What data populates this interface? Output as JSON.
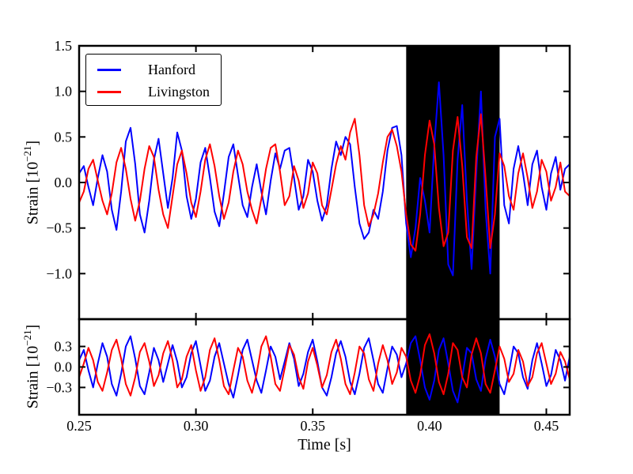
{
  "figure": {
    "background": "#ffffff"
  },
  "chart_data": {
    "type": "line",
    "title": "",
    "xlabel": "Time [s]",
    "grid": false,
    "xlim": [
      0.25,
      0.46
    ],
    "xticks": {
      "values": [
        0.25,
        0.3,
        0.35,
        0.4,
        0.45
      ],
      "labels": [
        "0.25",
        "0.30",
        "0.35",
        "0.40",
        "0.45"
      ]
    },
    "x_start": 0.25,
    "x_step": 0.002,
    "highlight_span": {
      "x0": 0.39,
      "x1": 0.43,
      "color": "#000000"
    },
    "legend": {
      "position": "upper left",
      "items": [
        {
          "label": "Hanford",
          "color": "#0000ff"
        },
        {
          "label": "Livingston",
          "color": "#ff0000"
        }
      ]
    },
    "subplots": [
      {
        "name": "strain-main",
        "ylabel": {
          "prefix": "Strain [10",
          "exponent": "−21",
          "suffix": "]"
        },
        "ylim": [
          -1.5,
          1.5
        ],
        "yticks": {
          "values": [
            1.5,
            1.0,
            0.5,
            0.0,
            -0.5,
            -1.0
          ],
          "labels": [
            "1.5",
            "1.0",
            "0.5",
            "0.0",
            "−0.5",
            "−1.0"
          ]
        },
        "series": [
          {
            "name": "Hanford",
            "color": "#0000ff",
            "values": [
              0.1,
              0.18,
              -0.05,
              -0.25,
              0.05,
              0.3,
              0.12,
              -0.3,
              -0.52,
              -0.1,
              0.45,
              0.6,
              0.2,
              -0.35,
              -0.55,
              -0.2,
              0.25,
              0.48,
              0.1,
              -0.28,
              0.05,
              0.55,
              0.35,
              -0.15,
              -0.4,
              -0.18,
              0.22,
              0.38,
              0.05,
              -0.32,
              -0.48,
              -0.12,
              0.28,
              0.42,
              0.08,
              -0.25,
              -0.38,
              -0.05,
              0.2,
              -0.1,
              -0.35,
              0.02,
              0.32,
              0.15,
              0.35,
              0.38,
              0.05,
              -0.3,
              -0.15,
              0.25,
              0.12,
              -0.2,
              -0.42,
              -0.25,
              0.15,
              0.45,
              0.3,
              0.5,
              0.42,
              -0.05,
              -0.45,
              -0.62,
              -0.55,
              -0.3,
              -0.4,
              -0.1,
              0.35,
              0.6,
              0.62,
              0.3,
              -0.45,
              -0.82,
              -0.5,
              0.05,
              -0.2,
              -0.55,
              0.4,
              1.1,
              0.3,
              -0.9,
              -1.02,
              0.25,
              0.85,
              -0.2,
              -0.95,
              0.1,
              1.0,
              -0.3,
              -1.0,
              0.5,
              0.7,
              -0.25,
              -0.45,
              0.15,
              0.4,
              0.1,
              -0.25,
              0.2,
              0.35,
              -0.05,
              -0.3,
              0.1,
              0.28,
              -0.08,
              0.15,
              0.2
            ]
          },
          {
            "name": "Livingston",
            "color": "#ff0000",
            "values": [
              -0.22,
              -0.1,
              0.15,
              0.25,
              0.02,
              -0.2,
              -0.35,
              -0.12,
              0.22,
              0.38,
              0.15,
              -0.18,
              -0.42,
              -0.2,
              0.15,
              0.4,
              0.28,
              -0.08,
              -0.35,
              -0.5,
              -0.15,
              0.2,
              0.35,
              0.1,
              -0.22,
              -0.38,
              -0.1,
              0.25,
              0.42,
              0.18,
              -0.15,
              -0.4,
              -0.22,
              0.12,
              0.35,
              0.2,
              -0.1,
              -0.3,
              -0.45,
              -0.18,
              0.15,
              0.38,
              0.42,
              0.12,
              -0.25,
              -0.15,
              0.18,
              0.02,
              -0.28,
              -0.12,
              0.22,
              0.1,
              -0.25,
              -0.35,
              -0.08,
              0.2,
              0.4,
              0.25,
              0.55,
              0.7,
              0.3,
              -0.25,
              -0.48,
              -0.35,
              -0.12,
              0.22,
              0.5,
              0.58,
              0.4,
              0.12,
              -0.35,
              -0.68,
              -0.75,
              -0.35,
              0.3,
              0.68,
              0.42,
              -0.28,
              -0.7,
              -0.55,
              0.35,
              0.72,
              0.18,
              -0.6,
              -0.72,
              0.28,
              0.75,
              0.05,
              -0.72,
              -0.35,
              0.32,
              0.18,
              -0.15,
              -0.3,
              0.1,
              0.32,
              0.05,
              -0.28,
              -0.1,
              0.25,
              0.12,
              -0.2,
              -0.05,
              0.22,
              -0.1,
              -0.15
            ]
          }
        ]
      },
      {
        "name": "strain-residual",
        "ylabel": {
          "prefix": "Strain [10",
          "exponent": "−21",
          "suffix": "]"
        },
        "ylim": [
          -0.7,
          0.7
        ],
        "yticks": {
          "values": [
            0.3,
            0.0,
            -0.3
          ],
          "labels": [
            "0.3",
            "0.0",
            "−0.3"
          ]
        },
        "series": [
          {
            "name": "Hanford",
            "color": "#0000ff",
            "values": [
              0.1,
              0.25,
              -0.05,
              -0.3,
              0.05,
              0.35,
              0.15,
              -0.25,
              -0.42,
              -0.1,
              0.3,
              0.45,
              0.12,
              -0.28,
              -0.4,
              -0.08,
              0.28,
              0.1,
              -0.22,
              0.05,
              0.32,
              0.08,
              -0.3,
              -0.15,
              0.2,
              0.38,
              0.02,
              -0.35,
              -0.2,
              0.15,
              0.35,
              0.05,
              -0.25,
              -0.45,
              -0.12,
              0.25,
              0.4,
              0.1,
              -0.2,
              -0.38,
              -0.05,
              0.3,
              0.15,
              -0.18,
              0.08,
              0.35,
              0.12,
              -0.28,
              -0.1,
              0.22,
              0.4,
              0.08,
              -0.3,
              -0.42,
              -0.15,
              0.2,
              0.38,
              0.15,
              -0.22,
              -0.4,
              -0.1,
              0.28,
              0.42,
              0.1,
              -0.25,
              -0.38,
              -0.02,
              0.3,
              0.18,
              -0.15,
              0.05,
              0.35,
              0.45,
              0.1,
              -0.3,
              -0.48,
              -0.2,
              0.25,
              0.42,
              0.05,
              -0.35,
              -0.52,
              -0.15,
              0.28,
              0.2,
              -0.18,
              -0.35,
              0.12,
              0.4,
              0.15,
              -0.25,
              -0.4,
              -0.08,
              0.3,
              0.2,
              -0.15,
              -0.32,
              0.1,
              0.35,
              0.05,
              -0.28,
              -0.12,
              0.25,
              0.1,
              -0.2,
              0.15
            ]
          },
          {
            "name": "Livingston",
            "color": "#ff0000",
            "values": [
              -0.15,
              0.05,
              0.28,
              0.1,
              -0.22,
              -0.35,
              -0.08,
              0.25,
              0.4,
              0.12,
              -0.25,
              -0.42,
              -0.15,
              0.22,
              0.35,
              0.08,
              -0.28,
              -0.12,
              0.2,
              0.38,
              0.1,
              -0.3,
              -0.18,
              0.15,
              0.32,
              -0.05,
              -0.35,
              -0.15,
              0.25,
              0.42,
              0.1,
              -0.28,
              -0.4,
              -0.05,
              0.28,
              0.15,
              -0.2,
              -0.38,
              -0.1,
              0.3,
              0.45,
              0.15,
              -0.25,
              -0.35,
              -0.02,
              0.32,
              0.18,
              -0.15,
              -0.32,
              0.08,
              0.28,
              0.02,
              -0.3,
              -0.12,
              0.22,
              0.4,
              0.12,
              -0.25,
              -0.4,
              -0.08,
              0.3,
              0.2,
              -0.18,
              -0.35,
              0.05,
              0.32,
              0.1,
              -0.25,
              -0.08,
              0.28,
              0.15,
              -0.2,
              -0.38,
              -0.12,
              0.32,
              0.48,
              0.2,
              -0.22,
              -0.4,
              -0.1,
              0.35,
              0.25,
              -0.15,
              -0.3,
              0.18,
              0.42,
              0.2,
              -0.25,
              -0.38,
              -0.05,
              0.3,
              0.12,
              -0.22,
              -0.1,
              0.25,
              0.08,
              -0.28,
              -0.15,
              0.2,
              0.35,
              0.05,
              -0.25,
              -0.1,
              0.22,
              0.08,
              -0.18
            ]
          }
        ]
      }
    ]
  }
}
